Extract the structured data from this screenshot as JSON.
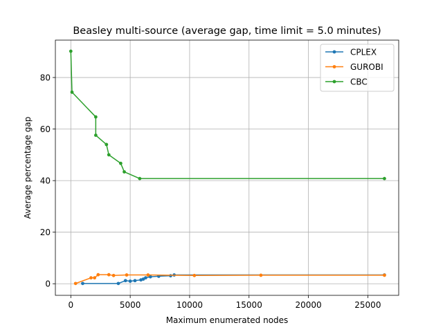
{
  "chart_data": {
    "type": "line",
    "title": "Beasley multi-source (average gap, time limit = 5.0 minutes)",
    "xlabel": "Maximum enumerated nodes",
    "ylabel": "Average percentage gap",
    "xlim": [
      -1300,
      27600
    ],
    "ylim": [
      -4.5,
      94.5
    ],
    "xticks": [
      0,
      5000,
      10000,
      15000,
      20000,
      25000
    ],
    "xtick_labels": [
      "0",
      "5000",
      "10000",
      "15000",
      "20000",
      "25000"
    ],
    "yticks": [
      0,
      20,
      40,
      60,
      80
    ],
    "ytick_labels": [
      "0",
      "20",
      "40",
      "60",
      "80"
    ],
    "grid": true,
    "legend_position": "upper right",
    "series": [
      {
        "name": "CPLEX",
        "color": "#1f77b4",
        "points": [
          [
            1000,
            0.1
          ],
          [
            4000,
            0.1
          ],
          [
            4600,
            1.2
          ],
          [
            5000,
            1.0
          ],
          [
            5400,
            1.2
          ],
          [
            5900,
            1.5
          ],
          [
            6100,
            1.8
          ],
          [
            6300,
            2.3
          ],
          [
            6700,
            2.7
          ],
          [
            7400,
            2.9
          ],
          [
            8400,
            3.1
          ],
          [
            8700,
            3.4
          ],
          [
            26400,
            3.4
          ]
        ]
      },
      {
        "name": "GUROBI",
        "color": "#ff7f0e",
        "points": [
          [
            400,
            0.1
          ],
          [
            1700,
            2.3
          ],
          [
            2000,
            2.3
          ],
          [
            2300,
            3.5
          ],
          [
            3200,
            3.5
          ],
          [
            3600,
            3.2
          ],
          [
            4700,
            3.4
          ],
          [
            6500,
            3.4
          ],
          [
            10400,
            3.2
          ],
          [
            16000,
            3.3
          ],
          [
            26400,
            3.3
          ]
        ]
      },
      {
        "name": "CBC",
        "color": "#2ca02c",
        "points": [
          [
            0,
            90.2
          ],
          [
            100,
            74.3
          ],
          [
            2100,
            64.7
          ],
          [
            2100,
            57.6
          ],
          [
            3000,
            54.0
          ],
          [
            3200,
            50.0
          ],
          [
            4200,
            46.7
          ],
          [
            4500,
            43.4
          ],
          [
            5800,
            40.8
          ],
          [
            26400,
            40.8
          ]
        ]
      }
    ]
  }
}
